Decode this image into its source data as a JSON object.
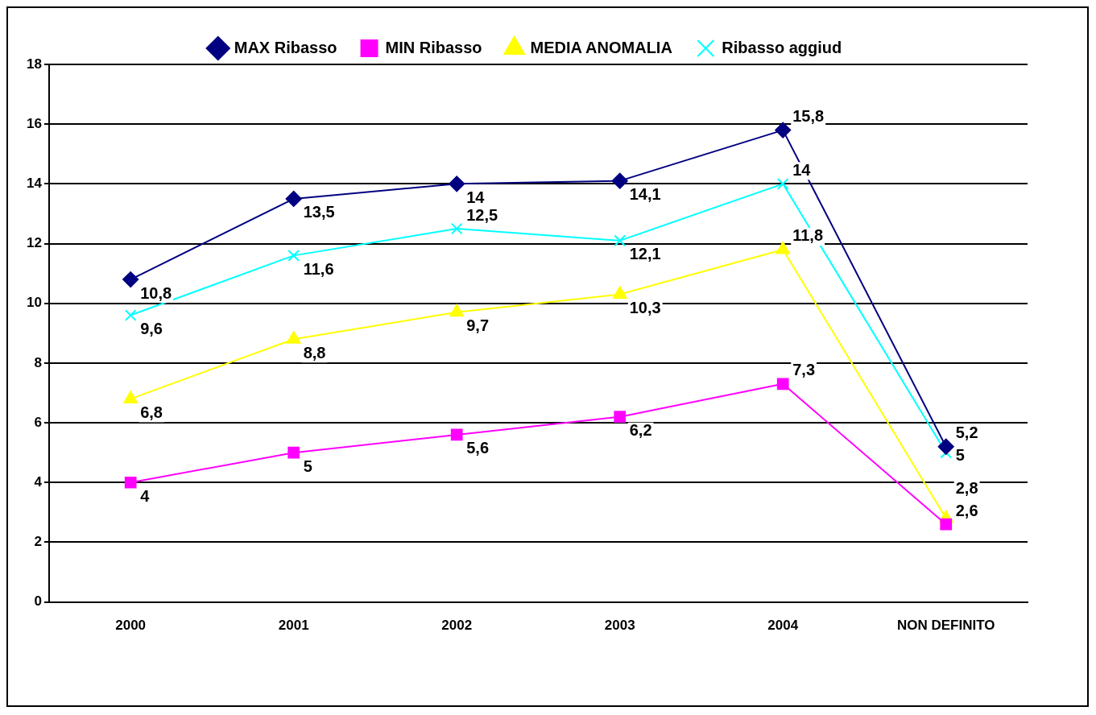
{
  "chart_data": {
    "type": "line",
    "categories": [
      "2000",
      "2001",
      "2002",
      "2003",
      "2004",
      "NON DEFINITO"
    ],
    "series": [
      {
        "name": "MAX Ribasso",
        "color": "#000080",
        "marker": "diamond",
        "values": [
          10.8,
          13.5,
          14,
          14.1,
          15.8,
          5.2
        ],
        "value_labels": [
          "10,8",
          "13,5",
          "14",
          "14,1",
          "15,8",
          "5,2"
        ]
      },
      {
        "name": "MIN Ribasso",
        "color": "#ff00ff",
        "marker": "square",
        "values": [
          4,
          5,
          5.6,
          6.2,
          7.3,
          2.6
        ],
        "value_labels": [
          "4",
          "5",
          "5,6",
          "6,2",
          "7,3",
          "2,6"
        ]
      },
      {
        "name": "MEDIA ANOMALIA",
        "color": "#ffff00",
        "marker": "triangle",
        "values": [
          6.8,
          8.8,
          9.7,
          10.3,
          11.8,
          2.8
        ],
        "value_labels": [
          "6,8",
          "8,8",
          "9,7",
          "10,3",
          "11,8",
          "2,8"
        ]
      },
      {
        "name": "Ribasso aggiud",
        "color": "#00ffff",
        "marker": "cross",
        "values": [
          9.6,
          11.6,
          12.5,
          12.1,
          14,
          5
        ],
        "value_labels": [
          "9,6",
          "11,6",
          "12,5",
          "12,1",
          "14",
          "5"
        ]
      }
    ],
    "ylim": [
      0,
      18
    ],
    "yticks": [
      0,
      2,
      4,
      6,
      8,
      10,
      12,
      14,
      16,
      18
    ],
    "grid": "y",
    "legend": "top",
    "line_style": "solid"
  }
}
